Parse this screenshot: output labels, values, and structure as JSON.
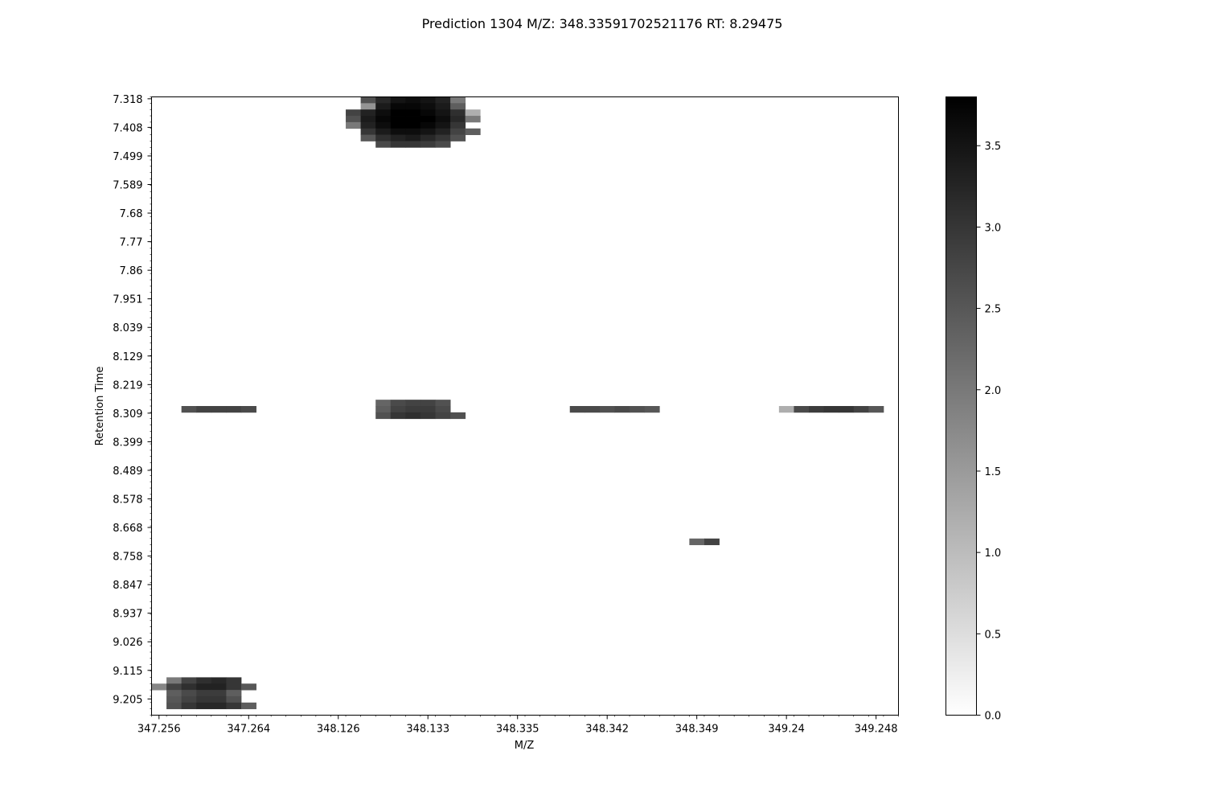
{
  "chart_data": {
    "type": "heatmap",
    "title": "Prediction 1304 M/Z: 348.33591702521176  RT: 8.29475",
    "xlabel": "M/Z",
    "ylabel": "Retention Time",
    "x_tick_labels": [
      "347.256",
      "347.264",
      "348.126",
      "348.133",
      "348.335",
      "348.342",
      "348.349",
      "349.24",
      "349.248"
    ],
    "y_tick_labels": [
      "7.318",
      "7.408",
      "7.499",
      "7.589",
      "7.68",
      "7.77",
      "7.86",
      "7.951",
      "8.039",
      "8.129",
      "8.219",
      "8.309",
      "8.399",
      "8.489",
      "8.578",
      "8.668",
      "8.758",
      "8.847",
      "8.937",
      "9.026",
      "9.115",
      "9.205"
    ],
    "colormap": "gray_r",
    "colorbar": {
      "vmin": 0.0,
      "vmax": 3.8,
      "ticks": [
        "0.0",
        "0.5",
        "1.0",
        "1.5",
        "2.0",
        "2.5",
        "3.0",
        "3.5"
      ]
    },
    "n_columns": 50,
    "n_rows": 98,
    "cells": [
      {
        "col": 14,
        "row": 0,
        "value": 2.6
      },
      {
        "col": 15,
        "row": 0,
        "value": 3.2
      },
      {
        "col": 16,
        "row": 0,
        "value": 3.5
      },
      {
        "col": 17,
        "row": 0,
        "value": 3.6
      },
      {
        "col": 18,
        "row": 0,
        "value": 3.5
      },
      {
        "col": 19,
        "row": 0,
        "value": 3.3
      },
      {
        "col": 20,
        "row": 0,
        "value": 2.0
      },
      {
        "col": 14,
        "row": 1,
        "value": 1.6
      },
      {
        "col": 15,
        "row": 1,
        "value": 3.4
      },
      {
        "col": 16,
        "row": 1,
        "value": 3.7
      },
      {
        "col": 17,
        "row": 1,
        "value": 3.7
      },
      {
        "col": 18,
        "row": 1,
        "value": 3.6
      },
      {
        "col": 19,
        "row": 1,
        "value": 3.4
      },
      {
        "col": 20,
        "row": 1,
        "value": 2.4
      },
      {
        "col": 13,
        "row": 2,
        "value": 2.8
      },
      {
        "col": 14,
        "row": 2,
        "value": 3.3
      },
      {
        "col": 15,
        "row": 2,
        "value": 3.6
      },
      {
        "col": 16,
        "row": 2,
        "value": 3.8
      },
      {
        "col": 17,
        "row": 2,
        "value": 3.8
      },
      {
        "col": 18,
        "row": 2,
        "value": 3.7
      },
      {
        "col": 19,
        "row": 2,
        "value": 3.5
      },
      {
        "col": 20,
        "row": 2,
        "value": 3.1
      },
      {
        "col": 21,
        "row": 2,
        "value": 1.2
      },
      {
        "col": 13,
        "row": 3,
        "value": 2.6
      },
      {
        "col": 14,
        "row": 3,
        "value": 3.4
      },
      {
        "col": 15,
        "row": 3,
        "value": 3.7
      },
      {
        "col": 16,
        "row": 3,
        "value": 3.8
      },
      {
        "col": 17,
        "row": 3,
        "value": 3.8
      },
      {
        "col": 18,
        "row": 3,
        "value": 3.8
      },
      {
        "col": 19,
        "row": 3,
        "value": 3.6
      },
      {
        "col": 20,
        "row": 3,
        "value": 3.2
      },
      {
        "col": 21,
        "row": 3,
        "value": 2.0
      },
      {
        "col": 13,
        "row": 4,
        "value": 2.0
      },
      {
        "col": 14,
        "row": 4,
        "value": 3.3
      },
      {
        "col": 15,
        "row": 4,
        "value": 3.6
      },
      {
        "col": 16,
        "row": 4,
        "value": 3.8
      },
      {
        "col": 17,
        "row": 4,
        "value": 3.8
      },
      {
        "col": 18,
        "row": 4,
        "value": 3.7
      },
      {
        "col": 19,
        "row": 4,
        "value": 3.5
      },
      {
        "col": 20,
        "row": 4,
        "value": 3.0
      },
      {
        "col": 14,
        "row": 5,
        "value": 3.0
      },
      {
        "col": 15,
        "row": 5,
        "value": 3.4
      },
      {
        "col": 16,
        "row": 5,
        "value": 3.6
      },
      {
        "col": 17,
        "row": 5,
        "value": 3.6
      },
      {
        "col": 18,
        "row": 5,
        "value": 3.5
      },
      {
        "col": 19,
        "row": 5,
        "value": 3.3
      },
      {
        "col": 20,
        "row": 5,
        "value": 2.8
      },
      {
        "col": 21,
        "row": 5,
        "value": 2.4
      },
      {
        "col": 14,
        "row": 6,
        "value": 2.5
      },
      {
        "col": 15,
        "row": 6,
        "value": 3.1
      },
      {
        "col": 16,
        "row": 6,
        "value": 3.3
      },
      {
        "col": 17,
        "row": 6,
        "value": 3.4
      },
      {
        "col": 18,
        "row": 6,
        "value": 3.2
      },
      {
        "col": 19,
        "row": 6,
        "value": 3.0
      },
      {
        "col": 20,
        "row": 6,
        "value": 2.6
      },
      {
        "col": 15,
        "row": 7,
        "value": 2.7
      },
      {
        "col": 16,
        "row": 7,
        "value": 3.0
      },
      {
        "col": 17,
        "row": 7,
        "value": 3.0
      },
      {
        "col": 18,
        "row": 7,
        "value": 2.9
      },
      {
        "col": 19,
        "row": 7,
        "value": 2.7
      },
      {
        "col": 2,
        "row": 49,
        "value": 2.6
      },
      {
        "col": 3,
        "row": 49,
        "value": 2.8
      },
      {
        "col": 4,
        "row": 49,
        "value": 2.8
      },
      {
        "col": 5,
        "row": 49,
        "value": 2.8
      },
      {
        "col": 6,
        "row": 49,
        "value": 2.7
      },
      {
        "col": 15,
        "row": 48,
        "value": 2.3
      },
      {
        "col": 16,
        "row": 48,
        "value": 2.7
      },
      {
        "col": 17,
        "row": 48,
        "value": 2.8
      },
      {
        "col": 18,
        "row": 48,
        "value": 2.8
      },
      {
        "col": 19,
        "row": 48,
        "value": 2.6
      },
      {
        "col": 15,
        "row": 49,
        "value": 2.4
      },
      {
        "col": 16,
        "row": 49,
        "value": 2.8
      },
      {
        "col": 17,
        "row": 49,
        "value": 2.9
      },
      {
        "col": 18,
        "row": 49,
        "value": 2.9
      },
      {
        "col": 19,
        "row": 49,
        "value": 2.7
      },
      {
        "col": 15,
        "row": 50,
        "value": 2.6
      },
      {
        "col": 16,
        "row": 50,
        "value": 3.0
      },
      {
        "col": 17,
        "row": 50,
        "value": 3.1
      },
      {
        "col": 18,
        "row": 50,
        "value": 3.0
      },
      {
        "col": 19,
        "row": 50,
        "value": 2.8
      },
      {
        "col": 20,
        "row": 50,
        "value": 2.6
      },
      {
        "col": 28,
        "row": 49,
        "value": 2.7
      },
      {
        "col": 29,
        "row": 49,
        "value": 2.7
      },
      {
        "col": 30,
        "row": 49,
        "value": 2.6
      },
      {
        "col": 31,
        "row": 49,
        "value": 2.7
      },
      {
        "col": 32,
        "row": 49,
        "value": 2.6
      },
      {
        "col": 33,
        "row": 49,
        "value": 2.5
      },
      {
        "col": 42,
        "row": 49,
        "value": 1.2
      },
      {
        "col": 43,
        "row": 49,
        "value": 2.7
      },
      {
        "col": 44,
        "row": 49,
        "value": 2.9
      },
      {
        "col": 45,
        "row": 49,
        "value": 3.0
      },
      {
        "col": 46,
        "row": 49,
        "value": 3.0
      },
      {
        "col": 47,
        "row": 49,
        "value": 2.8
      },
      {
        "col": 48,
        "row": 49,
        "value": 2.5
      },
      {
        "col": 36,
        "row": 70,
        "value": 2.3
      },
      {
        "col": 37,
        "row": 70,
        "value": 2.8
      },
      {
        "col": 1,
        "row": 92,
        "value": 2.0
      },
      {
        "col": 2,
        "row": 92,
        "value": 2.8
      },
      {
        "col": 3,
        "row": 92,
        "value": 3.1
      },
      {
        "col": 4,
        "row": 92,
        "value": 3.2
      },
      {
        "col": 5,
        "row": 92,
        "value": 3.0
      },
      {
        "col": 0,
        "row": 93,
        "value": 1.8
      },
      {
        "col": 1,
        "row": 93,
        "value": 2.8
      },
      {
        "col": 2,
        "row": 93,
        "value": 3.1
      },
      {
        "col": 3,
        "row": 93,
        "value": 3.3
      },
      {
        "col": 4,
        "row": 93,
        "value": 3.3
      },
      {
        "col": 5,
        "row": 93,
        "value": 3.0
      },
      {
        "col": 6,
        "row": 93,
        "value": 2.5
      },
      {
        "col": 1,
        "row": 94,
        "value": 2.4
      },
      {
        "col": 2,
        "row": 94,
        "value": 2.7
      },
      {
        "col": 3,
        "row": 94,
        "value": 2.9
      },
      {
        "col": 4,
        "row": 94,
        "value": 2.9
      },
      {
        "col": 5,
        "row": 94,
        "value": 2.4
      },
      {
        "col": 1,
        "row": 95,
        "value": 2.5
      },
      {
        "col": 2,
        "row": 95,
        "value": 2.8
      },
      {
        "col": 3,
        "row": 95,
        "value": 3.0
      },
      {
        "col": 4,
        "row": 95,
        "value": 3.0
      },
      {
        "col": 5,
        "row": 95,
        "value": 2.6
      },
      {
        "col": 1,
        "row": 96,
        "value": 2.6
      },
      {
        "col": 2,
        "row": 96,
        "value": 3.0
      },
      {
        "col": 3,
        "row": 96,
        "value": 3.2
      },
      {
        "col": 4,
        "row": 96,
        "value": 3.2
      },
      {
        "col": 5,
        "row": 96,
        "value": 3.0
      },
      {
        "col": 6,
        "row": 96,
        "value": 2.4
      }
    ]
  }
}
